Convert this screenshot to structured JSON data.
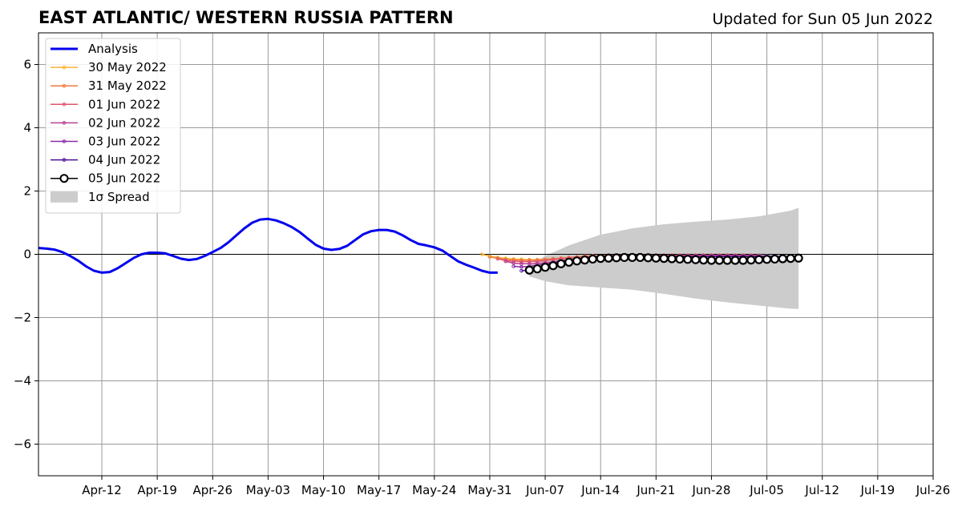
{
  "chart_data": {
    "type": "line",
    "title": "EAST ATLANTIC/ WESTERN RUSSIA PATTERN",
    "subtitle": "Updated for Sun 05 Jun 2022",
    "xlabel": "",
    "ylabel": "",
    "x_start": "2022-04-04",
    "x_end": "2022-07-26",
    "ylim": [
      -7,
      7
    ],
    "grid": true,
    "legend_position": "upper-left",
    "x_ticks": [
      {
        "date": "2022-04-12",
        "label": "Apr-12"
      },
      {
        "date": "2022-04-19",
        "label": "Apr-19"
      },
      {
        "date": "2022-04-26",
        "label": "Apr-26"
      },
      {
        "date": "2022-05-03",
        "label": "May-03"
      },
      {
        "date": "2022-05-10",
        "label": "May-10"
      },
      {
        "date": "2022-05-17",
        "label": "May-17"
      },
      {
        "date": "2022-05-24",
        "label": "May-24"
      },
      {
        "date": "2022-05-31",
        "label": "May-31"
      },
      {
        "date": "2022-06-07",
        "label": "Jun-07"
      },
      {
        "date": "2022-06-14",
        "label": "Jun-14"
      },
      {
        "date": "2022-06-21",
        "label": "Jun-21"
      },
      {
        "date": "2022-06-28",
        "label": "Jun-28"
      },
      {
        "date": "2022-07-05",
        "label": "Jul-05"
      },
      {
        "date": "2022-07-12",
        "label": "Jul-12"
      },
      {
        "date": "2022-07-19",
        "label": "Jul-19"
      },
      {
        "date": "2022-07-26",
        "label": "Jul-26"
      }
    ],
    "y_ticks": [
      {
        "value": -6,
        "label": "−6"
      },
      {
        "value": -4,
        "label": "−4"
      },
      {
        "value": -2,
        "label": "−2"
      },
      {
        "value": 0,
        "label": "0"
      },
      {
        "value": 2,
        "label": "2"
      },
      {
        "value": 4,
        "label": "4"
      },
      {
        "value": 6,
        "label": "6"
      }
    ],
    "analysis": {
      "name": "Analysis",
      "color": "#0000ee",
      "points": [
        [
          "2022-04-04",
          0.2
        ],
        [
          "2022-04-05",
          0.18
        ],
        [
          "2022-04-06",
          0.15
        ],
        [
          "2022-04-07",
          0.07
        ],
        [
          "2022-04-08",
          -0.05
        ],
        [
          "2022-04-09",
          -0.2
        ],
        [
          "2022-04-10",
          -0.38
        ],
        [
          "2022-04-11",
          -0.52
        ],
        [
          "2022-04-12",
          -0.58
        ],
        [
          "2022-04-13",
          -0.56
        ],
        [
          "2022-04-14",
          -0.44
        ],
        [
          "2022-04-15",
          -0.28
        ],
        [
          "2022-04-16",
          -0.12
        ],
        [
          "2022-04-17",
          0.0
        ],
        [
          "2022-04-18",
          0.05
        ],
        [
          "2022-04-19",
          0.05
        ],
        [
          "2022-04-20",
          0.03
        ],
        [
          "2022-04-21",
          -0.05
        ],
        [
          "2022-04-22",
          -0.14
        ],
        [
          "2022-04-23",
          -0.18
        ],
        [
          "2022-04-24",
          -0.15
        ],
        [
          "2022-04-25",
          -0.05
        ],
        [
          "2022-04-26",
          0.07
        ],
        [
          "2022-04-27",
          0.2
        ],
        [
          "2022-04-28",
          0.38
        ],
        [
          "2022-04-29",
          0.6
        ],
        [
          "2022-04-30",
          0.82
        ],
        [
          "2022-05-01",
          1.0
        ],
        [
          "2022-05-02",
          1.1
        ],
        [
          "2022-05-03",
          1.12
        ],
        [
          "2022-05-04",
          1.07
        ],
        [
          "2022-05-05",
          0.98
        ],
        [
          "2022-05-06",
          0.86
        ],
        [
          "2022-05-07",
          0.7
        ],
        [
          "2022-05-08",
          0.5
        ],
        [
          "2022-05-09",
          0.3
        ],
        [
          "2022-05-10",
          0.18
        ],
        [
          "2022-05-11",
          0.14
        ],
        [
          "2022-05-12",
          0.17
        ],
        [
          "2022-05-13",
          0.27
        ],
        [
          "2022-05-14",
          0.45
        ],
        [
          "2022-05-15",
          0.63
        ],
        [
          "2022-05-16",
          0.73
        ],
        [
          "2022-05-17",
          0.77
        ],
        [
          "2022-05-18",
          0.77
        ],
        [
          "2022-05-19",
          0.72
        ],
        [
          "2022-05-20",
          0.6
        ],
        [
          "2022-05-21",
          0.45
        ],
        [
          "2022-05-22",
          0.33
        ],
        [
          "2022-05-23",
          0.28
        ],
        [
          "2022-05-24",
          0.22
        ],
        [
          "2022-05-25",
          0.12
        ],
        [
          "2022-05-26",
          -0.05
        ],
        [
          "2022-05-27",
          -0.22
        ],
        [
          "2022-05-28",
          -0.33
        ],
        [
          "2022-05-29",
          -0.42
        ],
        [
          "2022-05-30",
          -0.52
        ],
        [
          "2022-05-31",
          -0.58
        ],
        [
          "2022-06-01",
          -0.58
        ]
      ]
    },
    "forecasts": [
      {
        "name": "30 May 2022",
        "color": "#f9b232",
        "start": "2022-05-30",
        "values": [
          0.0,
          -0.06,
          -0.1,
          -0.13,
          -0.15,
          -0.16,
          -0.17,
          -0.17,
          -0.16,
          -0.15,
          -0.13,
          -0.11,
          -0.09,
          -0.07,
          -0.06,
          -0.05,
          -0.04,
          -0.04,
          -0.03,
          -0.03,
          -0.03,
          -0.03,
          -0.03,
          -0.03,
          -0.03,
          -0.03,
          -0.03,
          -0.03,
          -0.03,
          -0.03,
          -0.03,
          -0.03,
          -0.03,
          -0.03
        ]
      },
      {
        "name": "31 May 2022",
        "color": "#f07a3a",
        "start": "2022-05-31",
        "values": [
          -0.08,
          -0.13,
          -0.16,
          -0.18,
          -0.19,
          -0.19,
          -0.18,
          -0.16,
          -0.14,
          -0.12,
          -0.1,
          -0.08,
          -0.06,
          -0.05,
          -0.04,
          -0.03,
          -0.03,
          -0.03,
          -0.03,
          -0.03,
          -0.03,
          -0.03,
          -0.03,
          -0.03,
          -0.03,
          -0.03,
          -0.03,
          -0.03,
          -0.03,
          -0.03,
          -0.03,
          -0.03,
          -0.03,
          -0.04
        ]
      },
      {
        "name": "01 Jun 2022",
        "color": "#e0566e",
        "start": "2022-06-01",
        "values": [
          -0.14,
          -0.2,
          -0.22,
          -0.23,
          -0.23,
          -0.22,
          -0.2,
          -0.17,
          -0.14,
          -0.12,
          -0.1,
          -0.08,
          -0.06,
          -0.05,
          -0.04,
          -0.04,
          -0.03,
          -0.03,
          -0.03,
          -0.03,
          -0.03,
          -0.03,
          -0.03,
          -0.03,
          -0.03,
          -0.03,
          -0.03,
          -0.03,
          -0.03,
          -0.03,
          -0.03,
          -0.03,
          -0.03,
          -0.03
        ]
      },
      {
        "name": "02 Jun 2022",
        "color": "#b83f92",
        "start": "2022-06-02",
        "values": [
          -0.22,
          -0.28,
          -0.3,
          -0.3,
          -0.29,
          -0.27,
          -0.24,
          -0.2,
          -0.17,
          -0.14,
          -0.12,
          -0.1,
          -0.08,
          -0.07,
          -0.06,
          -0.05,
          -0.05,
          -0.05,
          -0.05,
          -0.05,
          -0.05,
          -0.05,
          -0.05,
          -0.05,
          -0.05,
          -0.05,
          -0.05,
          -0.05,
          -0.05,
          -0.05,
          -0.05,
          -0.05,
          -0.05,
          -0.05
        ]
      },
      {
        "name": "03 Jun 2022",
        "color": "#8c2aa6",
        "start": "2022-06-03",
        "values": [
          -0.38,
          -0.4,
          -0.38,
          -0.35,
          -0.31,
          -0.27,
          -0.23,
          -0.19,
          -0.16,
          -0.13,
          -0.11,
          -0.09,
          -0.08,
          -0.07,
          -0.06,
          -0.06,
          -0.06,
          -0.06,
          -0.06,
          -0.06,
          -0.06,
          -0.06,
          -0.06,
          -0.06,
          -0.06,
          -0.06,
          -0.06,
          -0.06,
          -0.06,
          -0.06,
          -0.06,
          -0.06,
          -0.06,
          -0.06
        ]
      },
      {
        "name": "04 Jun 2022",
        "color": "#4b0f96",
        "start": "2022-06-04",
        "values": [
          -0.52,
          -0.5,
          -0.45,
          -0.4,
          -0.34,
          -0.29,
          -0.24,
          -0.2,
          -0.16,
          -0.13,
          -0.11,
          -0.09,
          -0.08,
          -0.07,
          -0.07,
          -0.07,
          -0.07,
          -0.07,
          -0.07,
          -0.07,
          -0.07,
          -0.07,
          -0.07,
          -0.07,
          -0.07,
          -0.07,
          -0.07,
          -0.07,
          -0.07,
          -0.07,
          -0.07,
          -0.07,
          -0.07,
          -0.07
        ]
      },
      {
        "name": "05 Jun 2022",
        "color": "#000000",
        "start": "2022-06-05",
        "values": [
          -0.5,
          -0.46,
          -0.41,
          -0.36,
          -0.3,
          -0.25,
          -0.21,
          -0.18,
          -0.15,
          -0.13,
          -0.12,
          -0.11,
          -0.1,
          -0.1,
          -0.1,
          -0.11,
          -0.12,
          -0.13,
          -0.14,
          -0.15,
          -0.16,
          -0.17,
          -0.18,
          -0.19,
          -0.19,
          -0.19,
          -0.19,
          -0.19,
          -0.18,
          -0.17,
          -0.16,
          -0.15,
          -0.14,
          -0.13,
          -0.12
        ]
      }
    ],
    "spread": {
      "name": "1σ Spread",
      "color": "#cccccc",
      "points": [
        [
          "2022-06-05",
          -0.7,
          -0.35
        ],
        [
          "2022-06-07",
          -0.85,
          -0.05
        ],
        [
          "2022-06-10",
          -0.98,
          0.28
        ],
        [
          "2022-06-14",
          -1.05,
          0.62
        ],
        [
          "2022-06-18",
          -1.12,
          0.82
        ],
        [
          "2022-06-22",
          -1.25,
          0.95
        ],
        [
          "2022-06-26",
          -1.4,
          1.03
        ],
        [
          "2022-06-30",
          -1.52,
          1.1
        ],
        [
          "2022-07-04",
          -1.62,
          1.2
        ],
        [
          "2022-07-08",
          -1.72,
          1.38
        ],
        [
          "2022-07-09",
          -1.73,
          1.47
        ]
      ]
    }
  }
}
